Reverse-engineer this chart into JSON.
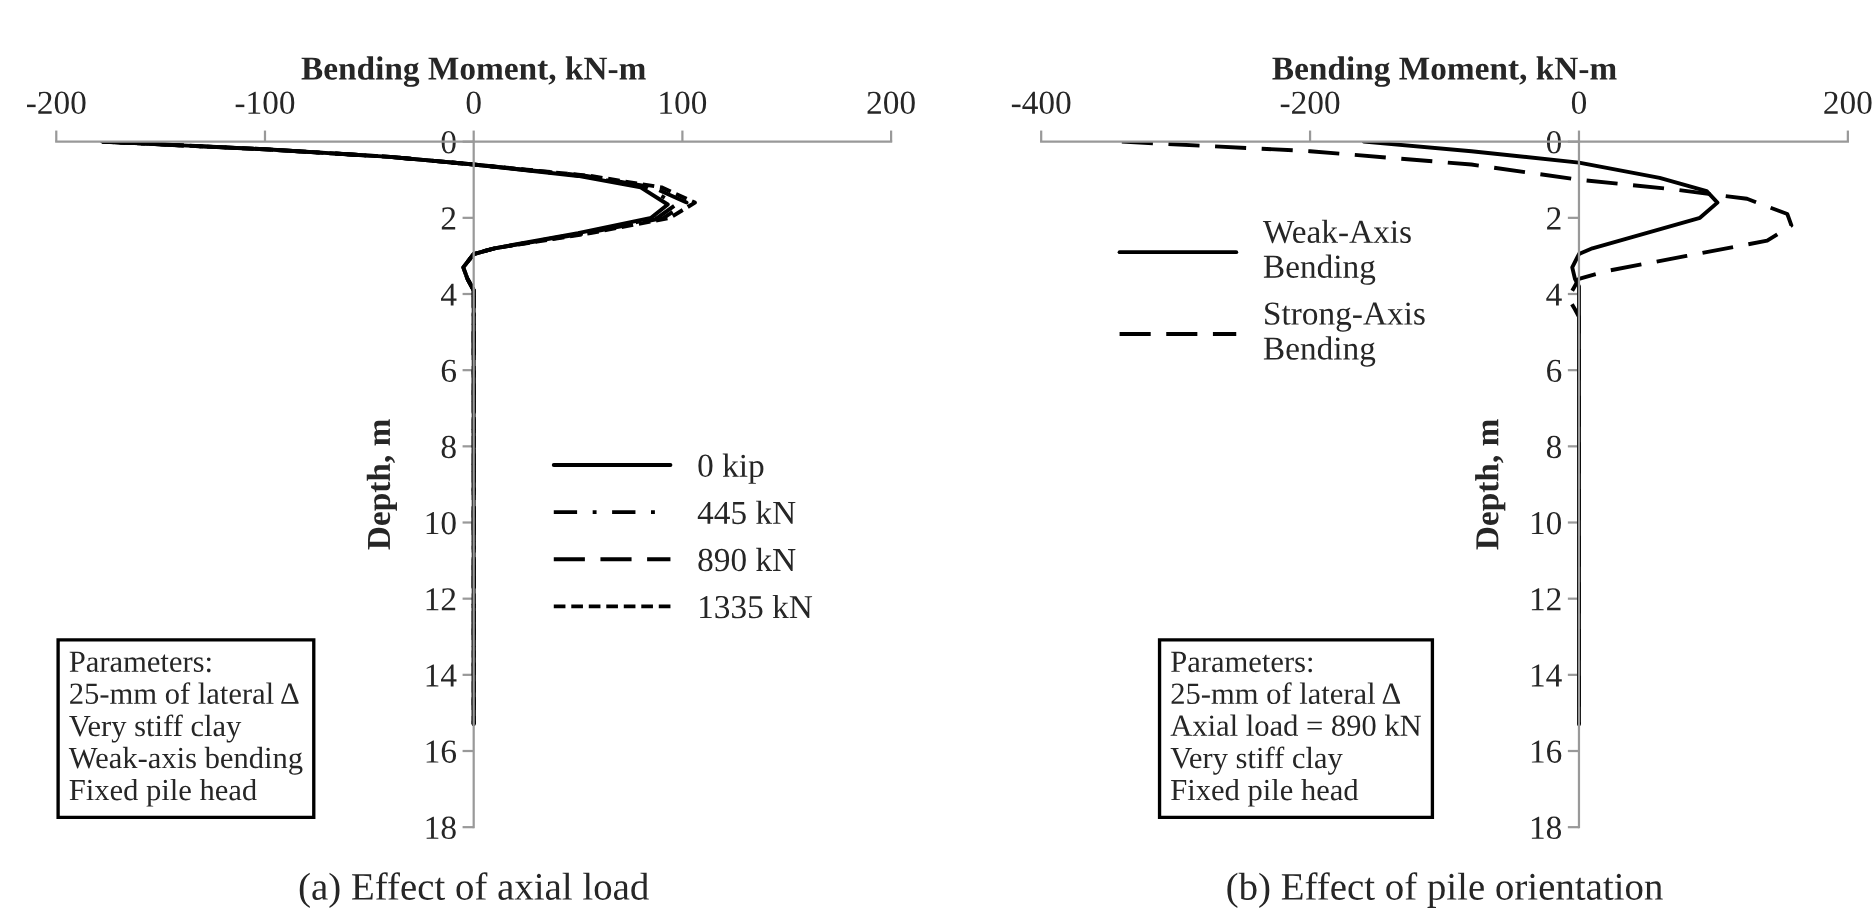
{
  "chart_data": [
    {
      "type": "line",
      "title": "(a) Effect of axial load",
      "xlabel": "Bending Moment, kN-m",
      "ylabel": "Depth, m",
      "xlim": [
        -200,
        200
      ],
      "xticks": [
        -200,
        -100,
        0,
        100,
        200
      ],
      "ylim": [
        18,
        0
      ],
      "yticks": [
        0,
        2,
        4,
        6,
        8,
        10,
        12,
        14,
        16,
        18
      ],
      "grid": false,
      "legend": "right",
      "marker": "none",
      "annotations": [
        "Parameters:\n25-mm of lateral Δ\nVery stiff clay\nWeak-axis bending\nFixed pile head"
      ],
      "series": [
        {
          "name": "0 kip",
          "color": "#000000",
          "line_style": "solid",
          "x": [
            -178,
            -100,
            -40,
            0,
            50,
            80,
            93,
            85,
            50,
            10,
            0,
            -5,
            -3,
            0,
            0,
            0
          ],
          "values": [
            0,
            0.2,
            0.4,
            0.6,
            0.9,
            1.2,
            1.65,
            2.0,
            2.4,
            2.8,
            2.95,
            3.3,
            3.6,
            3.9,
            8,
            15.3
          ]
        },
        {
          "name": "445 kN",
          "color": "#000000",
          "line_style": "dashdot",
          "x": [
            -178,
            -100,
            -40,
            0,
            52,
            83,
            97,
            88,
            52,
            10,
            0,
            -5,
            -3,
            0,
            0,
            0
          ],
          "values": [
            0,
            0.2,
            0.4,
            0.6,
            0.9,
            1.2,
            1.65,
            2.0,
            2.4,
            2.8,
            2.95,
            3.3,
            3.6,
            3.9,
            8,
            15.3
          ]
        },
        {
          "name": "890 kN",
          "color": "#000000",
          "line_style": "longdash",
          "x": [
            -178,
            -100,
            -40,
            0,
            54,
            86,
            102,
            91,
            54,
            10,
            0,
            -5,
            -3,
            0,
            0,
            0
          ],
          "values": [
            0,
            0.2,
            0.4,
            0.6,
            0.9,
            1.2,
            1.6,
            2.0,
            2.4,
            2.8,
            2.95,
            3.3,
            3.6,
            3.9,
            8,
            15.3
          ]
        },
        {
          "name": "1335 kN",
          "color": "#000000",
          "line_style": "dashed",
          "x": [
            -178,
            -100,
            -40,
            0,
            56,
            90,
            106,
            94,
            56,
            10,
            0,
            -5,
            -3,
            0,
            0,
            0
          ],
          "values": [
            0,
            0.2,
            0.4,
            0.6,
            0.9,
            1.2,
            1.6,
            2.0,
            2.4,
            2.8,
            2.95,
            3.3,
            3.6,
            3.9,
            8,
            15.3
          ]
        }
      ]
    },
    {
      "type": "line",
      "title": "(b) Effect of pile orientation",
      "xlabel": "Bending Moment, kN-m",
      "ylabel": "Depth, m",
      "xlim": [
        -400,
        200
      ],
      "xticks": [
        -400,
        -200,
        0,
        200
      ],
      "ylim": [
        18,
        0
      ],
      "yticks": [
        0,
        2,
        4,
        6,
        8,
        10,
        12,
        14,
        16,
        18
      ],
      "grid": false,
      "legend": "top left",
      "marker": "none",
      "annotations": [
        "Parameters:\n25-mm of lateral Δ\nAxial load = 890 kN\nVery stiff clay\nFixed pile head"
      ],
      "series": [
        {
          "name": "Weak-Axis\nBending",
          "color": "#000000",
          "line_style": "solid",
          "x": [
            -160,
            -80,
            0,
            60,
            95,
            103,
            90,
            50,
            10,
            0,
            -5,
            -3,
            0,
            0,
            0
          ],
          "values": [
            0,
            0.25,
            0.55,
            0.95,
            1.3,
            1.6,
            2.0,
            2.4,
            2.8,
            2.95,
            3.3,
            3.6,
            3.8,
            8,
            15.3
          ]
        },
        {
          "name": "Strong-Axis\nBending",
          "color": "#000000",
          "line_style": "longdash",
          "x": [
            -340,
            -200,
            -80,
            0,
            70,
            125,
            155,
            158,
            140,
            80,
            20,
            0,
            -8,
            -3,
            0,
            0,
            0
          ],
          "values": [
            0,
            0.25,
            0.6,
            1.0,
            1.25,
            1.5,
            1.9,
            2.2,
            2.6,
            3.0,
            3.4,
            3.6,
            4.1,
            4.4,
            4.6,
            8,
            15.3
          ]
        }
      ]
    }
  ]
}
